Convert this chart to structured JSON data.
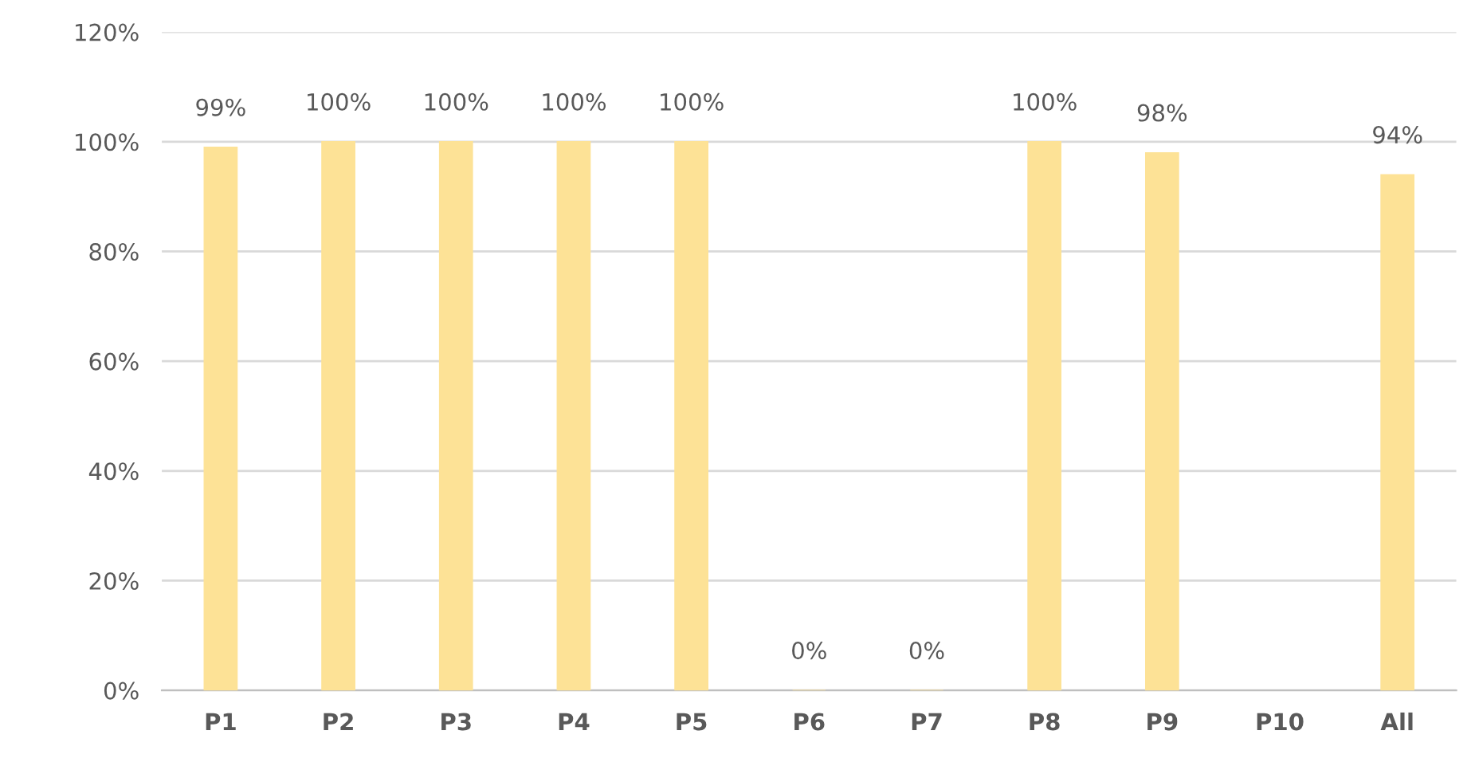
{
  "chart_data": {
    "type": "bar",
    "categories": [
      "P1",
      "P2",
      "P3",
      "P4",
      "P5",
      "P6",
      "P7",
      "P8",
      "P9",
      "P10",
      "All"
    ],
    "values": [
      99,
      100,
      100,
      100,
      100,
      0,
      0,
      100,
      98,
      null,
      94
    ],
    "value_labels": [
      "99%",
      "100%",
      "100%",
      "100%",
      "100%",
      "0%",
      "0%",
      "100%",
      "98%",
      null,
      "94%"
    ],
    "color": "#fde296",
    "ylim": [
      0,
      120
    ],
    "yticks": [
      {
        "value": 0,
        "label": "0%"
      },
      {
        "value": 20,
        "label": "20%"
      },
      {
        "value": 40,
        "label": "40%"
      },
      {
        "value": 60,
        "label": "60%"
      },
      {
        "value": 80,
        "label": "80%"
      },
      {
        "value": 100,
        "label": "100%"
      },
      {
        "value": 120,
        "label": "120%"
      }
    ],
    "grid": "y",
    "legend": false
  }
}
